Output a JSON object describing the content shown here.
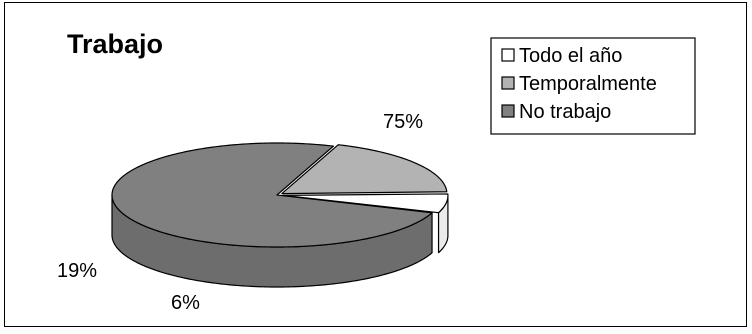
{
  "chart_data": {
    "type": "pie",
    "title": "Trabajo",
    "categories": [
      "Todo el año",
      "Temporalmente",
      "No trabajo"
    ],
    "values": [
      6,
      19,
      75
    ],
    "data_labels": [
      "6%",
      "19%",
      "75%"
    ],
    "colors": [
      "#ffffff",
      "#b3b3b3",
      "#808080"
    ],
    "legend_position": "top-right",
    "style": "3d-exploded"
  }
}
